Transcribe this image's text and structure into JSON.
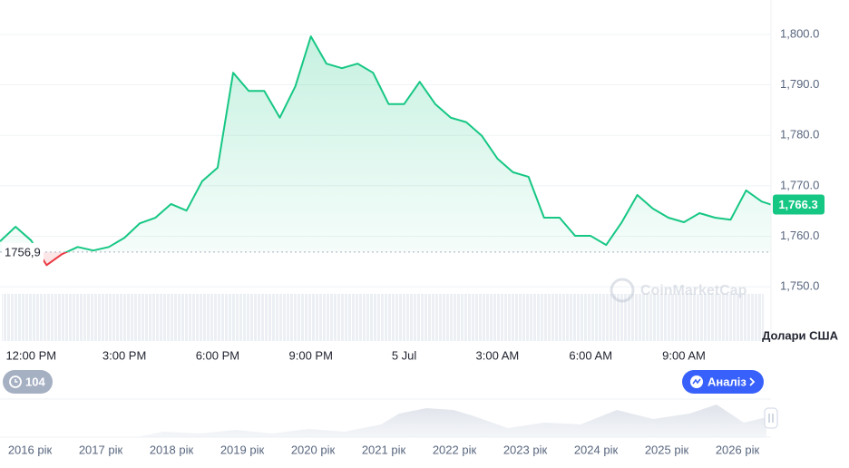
{
  "chart_data": {
    "type": "line",
    "x": [
      -1,
      -0.5,
      0,
      0.5,
      1,
      1.5,
      2,
      2.5,
      3,
      3.5,
      4,
      4.5,
      5,
      5.5,
      6,
      6.5,
      7,
      7.5,
      8,
      8.5,
      9,
      9.5,
      10,
      10.5,
      11,
      11.5,
      12,
      12.5,
      13,
      13.5,
      14,
      14.5,
      15,
      15.5,
      16,
      16.5,
      17,
      17.5,
      18,
      18.5,
      19,
      19.5,
      20,
      20.5,
      21,
      21.5,
      22,
      22.5,
      23,
      23.5,
      23.8
    ],
    "series": [
      {
        "color": "#16c784",
        "values": [
          1759,
          1761.9,
          1759.2,
          1754.3,
          1756.5,
          1757.9,
          1757.2,
          1757.9,
          1759.7,
          1762.6,
          1763.7,
          1766.4,
          1765.1,
          1770.9,
          1773.6,
          1792.4,
          1788.8,
          1788.8,
          1783.5,
          1789.7,
          1799.6,
          1794.2,
          1793.3,
          1794.2,
          1792.4,
          1786.2,
          1786.2,
          1790.6,
          1786.2,
          1783.5,
          1782.6,
          1779.9,
          1775.4,
          1772.7,
          1771.8,
          1763.7,
          1763.7,
          1760.1,
          1760.1,
          1758.3,
          1762.8,
          1768.2,
          1765.5,
          1763.7,
          1762.8,
          1764.6,
          1763.7,
          1763.3,
          1769.1,
          1766.9,
          1766.3
        ]
      }
    ],
    "down_color": "#ea3943",
    "xlim": [
      -1,
      23.8
    ],
    "xticks": [
      {
        "value": 0,
        "label": "12:00 PM"
      },
      {
        "value": 3,
        "label": "3:00 PM"
      },
      {
        "value": 6,
        "label": "6:00 PM"
      },
      {
        "value": 9,
        "label": "9:00 PM"
      },
      {
        "value": 12,
        "label": "5 Jul"
      },
      {
        "value": 15,
        "label": "3:00 AM"
      },
      {
        "value": 18,
        "label": "6:00 AM"
      },
      {
        "value": 21,
        "label": "9:00 AM"
      }
    ],
    "ylim": [
      1747,
      1806.8
    ],
    "yticks": [
      {
        "value": 1750,
        "label": "1,750.0"
      },
      {
        "value": 1760,
        "label": "1,760.0"
      },
      {
        "value": 1770,
        "label": "1,770.0"
      },
      {
        "value": 1780,
        "label": "1,780.0"
      },
      {
        "value": 1790,
        "label": "1,790.0"
      },
      {
        "value": 1800,
        "label": "1,800.0"
      }
    ],
    "grid": true,
    "baseline": {
      "value": 1756.9,
      "label": "1756,9"
    },
    "last_price": {
      "value": 1766.3,
      "label": "1,766.3"
    },
    "y_axis_label": "Долари США"
  },
  "ui": {
    "badge": "104",
    "analysis_button": "Аналіз",
    "watermark": "CoinMarketCap",
    "navigator_labels": [
      "2016 рік",
      "2017 рік",
      "2018 рік",
      "2019 рік",
      "2020 рік",
      "2021 рік",
      "2022 рік",
      "2023 рік",
      "2024 рік",
      "2025 рік",
      "2026 рік"
    ]
  }
}
